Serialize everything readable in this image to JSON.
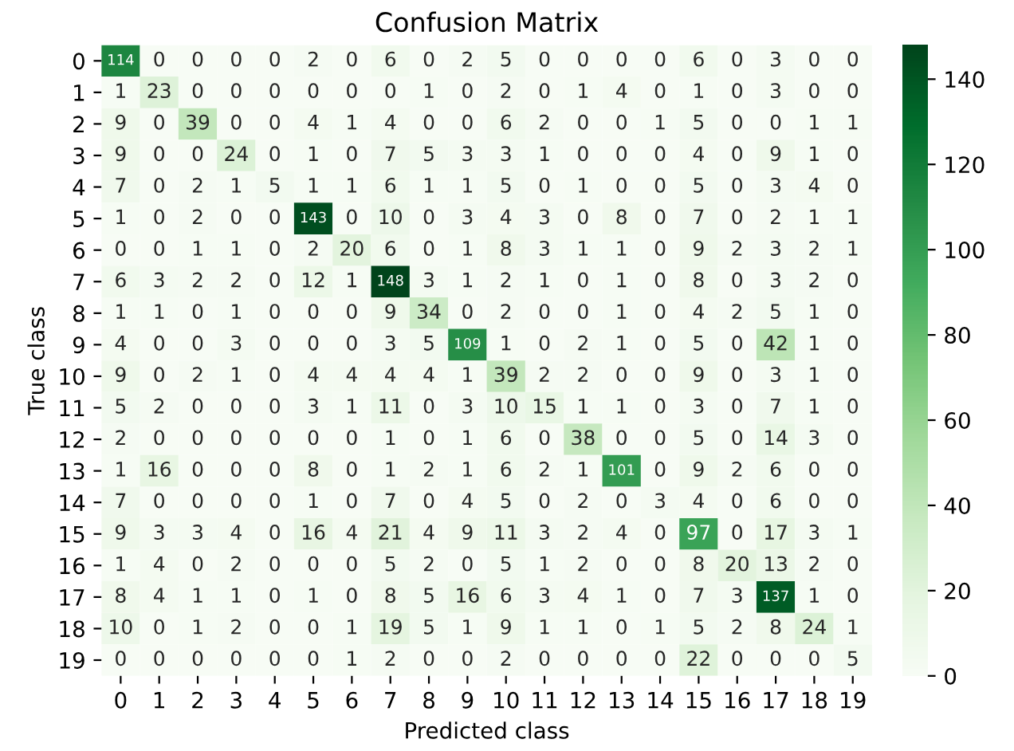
{
  "chart_data": {
    "type": "heatmap",
    "title": "Confusion Matrix",
    "xlabel": "Predicted class",
    "ylabel": "True class",
    "categories": [
      "0",
      "1",
      "2",
      "3",
      "4",
      "5",
      "6",
      "7",
      "8",
      "9",
      "10",
      "11",
      "12",
      "13",
      "14",
      "15",
      "16",
      "17",
      "18",
      "19"
    ],
    "y_categories": [
      "0",
      "1",
      "2",
      "3",
      "4",
      "5",
      "6",
      "7",
      "8",
      "9",
      "10",
      "11",
      "12",
      "13",
      "14",
      "15",
      "16",
      "17",
      "18",
      "19"
    ],
    "cells": [
      [
        114,
        0,
        0,
        0,
        0,
        2,
        0,
        6,
        0,
        2,
        5,
        0,
        0,
        0,
        0,
        6,
        0,
        3,
        0,
        0
      ],
      [
        1,
        23,
        0,
        0,
        0,
        0,
        0,
        0,
        1,
        0,
        2,
        0,
        1,
        4,
        0,
        1,
        0,
        3,
        0,
        0
      ],
      [
        9,
        0,
        39,
        0,
        0,
        4,
        1,
        4,
        0,
        0,
        6,
        2,
        0,
        0,
        1,
        5,
        0,
        0,
        1,
        1
      ],
      [
        9,
        0,
        0,
        24,
        0,
        1,
        0,
        7,
        5,
        3,
        3,
        1,
        0,
        0,
        0,
        4,
        0,
        9,
        1,
        0
      ],
      [
        7,
        0,
        2,
        1,
        5,
        1,
        1,
        6,
        1,
        1,
        5,
        0,
        1,
        0,
        0,
        5,
        0,
        3,
        4,
        0
      ],
      [
        1,
        0,
        2,
        0,
        0,
        143,
        0,
        10,
        0,
        3,
        4,
        3,
        0,
        8,
        0,
        7,
        0,
        2,
        1,
        1
      ],
      [
        0,
        0,
        1,
        1,
        0,
        2,
        20,
        6,
        0,
        1,
        8,
        3,
        1,
        1,
        0,
        9,
        2,
        3,
        2,
        1
      ],
      [
        6,
        3,
        2,
        2,
        0,
        12,
        1,
        148,
        3,
        1,
        2,
        1,
        0,
        1,
        0,
        8,
        0,
        3,
        2,
        0
      ],
      [
        1,
        1,
        0,
        1,
        0,
        0,
        0,
        9,
        34,
        0,
        2,
        0,
        0,
        1,
        0,
        4,
        2,
        5,
        1,
        0
      ],
      [
        4,
        0,
        0,
        3,
        0,
        0,
        0,
        3,
        5,
        109,
        1,
        0,
        2,
        1,
        0,
        5,
        0,
        42,
        1,
        0
      ],
      [
        9,
        0,
        2,
        1,
        0,
        4,
        4,
        4,
        4,
        1,
        39,
        2,
        2,
        0,
        0,
        9,
        0,
        3,
        1,
        0
      ],
      [
        5,
        2,
        0,
        0,
        0,
        3,
        1,
        11,
        0,
        3,
        10,
        15,
        1,
        1,
        0,
        3,
        0,
        7,
        1,
        0
      ],
      [
        2,
        0,
        0,
        0,
        0,
        0,
        0,
        1,
        0,
        1,
        6,
        0,
        38,
        0,
        0,
        5,
        0,
        14,
        3,
        0
      ],
      [
        1,
        16,
        0,
        0,
        0,
        8,
        0,
        1,
        2,
        1,
        6,
        2,
        1,
        101,
        0,
        9,
        2,
        6,
        0,
        0
      ],
      [
        7,
        0,
        0,
        0,
        0,
        1,
        0,
        7,
        0,
        4,
        5,
        0,
        2,
        0,
        3,
        4,
        0,
        6,
        0,
        0
      ],
      [
        9,
        3,
        3,
        4,
        0,
        16,
        4,
        21,
        4,
        9,
        11,
        3,
        2,
        4,
        0,
        97,
        0,
        17,
        3,
        1
      ],
      [
        1,
        4,
        0,
        2,
        0,
        0,
        0,
        5,
        2,
        0,
        5,
        1,
        2,
        0,
        0,
        8,
        20,
        13,
        2,
        0
      ],
      [
        8,
        4,
        1,
        1,
        0,
        1,
        0,
        8,
        5,
        16,
        6,
        3,
        4,
        1,
        0,
        7,
        3,
        137,
        1,
        0
      ],
      [
        10,
        0,
        1,
        2,
        0,
        0,
        1,
        19,
        5,
        1,
        9,
        1,
        1,
        0,
        1,
        5,
        2,
        8,
        24,
        1
      ],
      [
        0,
        0,
        0,
        0,
        0,
        0,
        1,
        2,
        0,
        0,
        2,
        0,
        0,
        0,
        0,
        22,
        0,
        0,
        0,
        5
      ]
    ],
    "clim": [
      0,
      148
    ],
    "cticks": [
      0,
      20,
      40,
      60,
      80,
      100,
      120,
      140
    ],
    "data_labels": true
  }
}
